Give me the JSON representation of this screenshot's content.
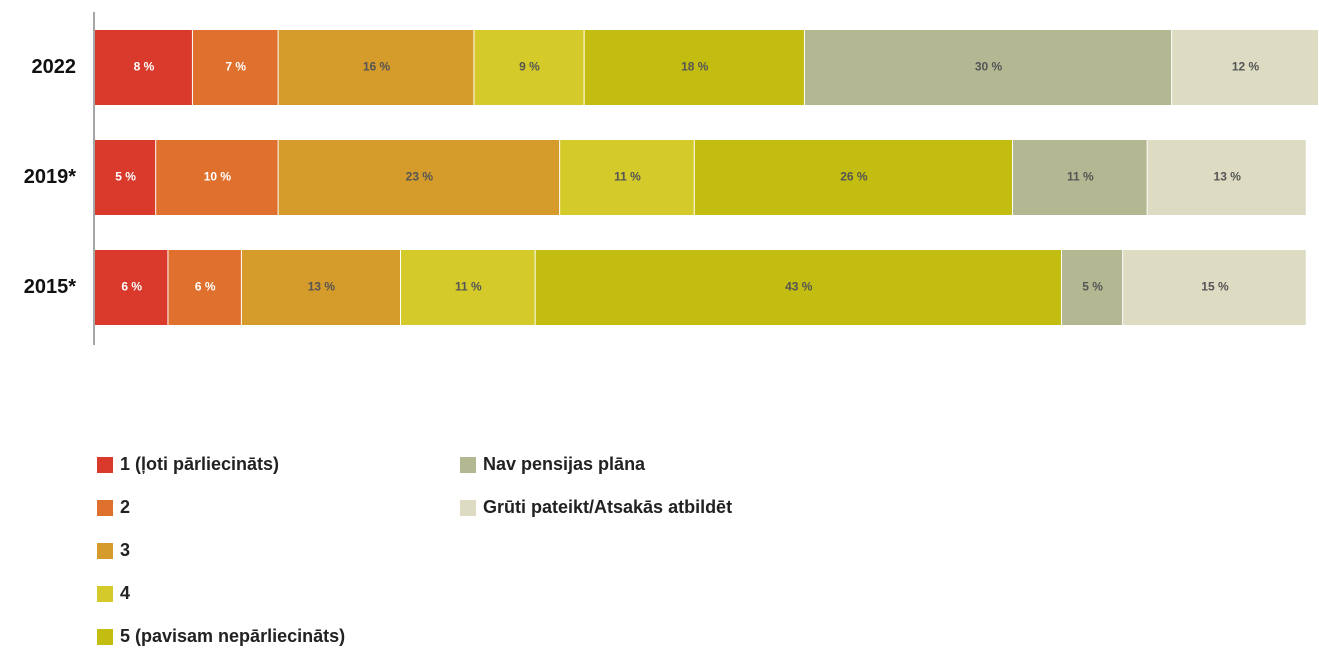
{
  "chart_data": {
    "type": "stacked_barh",
    "categories": [
      "2022",
      "2019*",
      "2015*"
    ],
    "xlim": [
      0,
      100
    ],
    "series": [
      {
        "name": "1 (ļoti pārliecināts)",
        "color": "#d93a2b",
        "values": [
          8,
          5,
          6
        ],
        "value_labels": [
          "8 %",
          "5 %",
          "6 %"
        ]
      },
      {
        "name": "2",
        "color": "#e0702d",
        "values": [
          7,
          10,
          6
        ],
        "value_labels": [
          "7 %",
          "10 %",
          "6 %"
        ]
      },
      {
        "name": "3",
        "color": "#d59b2b",
        "values": [
          16,
          23,
          13
        ],
        "value_labels": [
          "16 %",
          "23 %",
          "13 %"
        ]
      },
      {
        "name": "4",
        "color": "#d4cb2a",
        "values": [
          9,
          11,
          11
        ],
        "value_labels": [
          "9 %",
          "11 %",
          "11 %"
        ]
      },
      {
        "name": "5 (pavisam nepārliecināts)",
        "color": "#c2bd10",
        "values": [
          18,
          26,
          43
        ],
        "value_labels": [
          "18 %",
          "26 %",
          "43 %"
        ]
      },
      {
        "name": "Nav pensijas plāna",
        "color": "#b3b892",
        "values": [
          30,
          11,
          5
        ],
        "value_labels": [
          "30 %",
          "11 %",
          "5 %"
        ]
      },
      {
        "name": "Grūti pateikt/Atsakās atbildēt",
        "color": "#dddcc3",
        "values": [
          12,
          13,
          15
        ],
        "value_labels": [
          "12 %",
          "13 %",
          "15 %"
        ]
      }
    ]
  }
}
